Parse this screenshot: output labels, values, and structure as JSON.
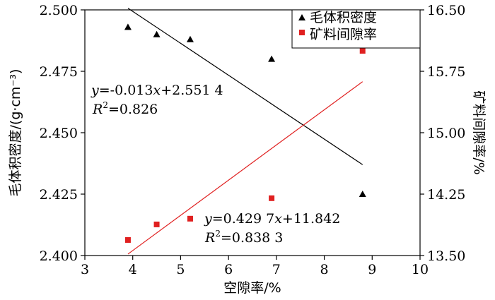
{
  "chart_data": {
    "type": "scatter",
    "xlabel": "空隙率/%",
    "ylabel_left": "毛体积密度/(g·cm⁻³)",
    "ylabel_right": "矿料间隙率/%",
    "xlim": [
      3,
      10
    ],
    "ylim_left": [
      2.4,
      2.5
    ],
    "ylim_right": [
      13.5,
      16.5
    ],
    "x_ticks": [
      "3",
      "4",
      "5",
      "6",
      "7",
      "8",
      "9",
      "10"
    ],
    "y_left_ticks": [
      "2.400",
      "2.425",
      "2.450",
      "2.475",
      "2.500"
    ],
    "y_right_ticks": [
      "13.50",
      "14.25",
      "15.00",
      "15.75",
      "16.50"
    ],
    "legend": {
      "position": "top-right"
    },
    "series": [
      {
        "name": "毛体积密度",
        "axis": "left",
        "marker": "triangle",
        "color": "#000000",
        "points": [
          [
            3.9,
            2.493
          ],
          [
            4.5,
            2.49
          ],
          [
            5.2,
            2.488
          ],
          [
            6.9,
            2.48
          ],
          [
            8.8,
            2.425
          ]
        ],
        "fit": {
          "slope": -0.013,
          "intercept": 2.5514,
          "x_range": [
            3.9,
            8.8
          ]
        },
        "equation": {
          "prefix": "y",
          "text": "=-0.013",
          "var": "x",
          "rest": "+2.551 4"
        },
        "r2": {
          "R": "R",
          "sup": "2",
          "text": "=0.826"
        }
      },
      {
        "name": "矿料间隙率",
        "axis": "right",
        "marker": "square",
        "color": "#e02020",
        "points": [
          [
            3.9,
            13.69
          ],
          [
            4.5,
            13.88
          ],
          [
            5.2,
            13.95
          ],
          [
            6.9,
            14.2
          ],
          [
            8.8,
            16.0
          ]
        ],
        "fit": {
          "slope": 0.4297,
          "intercept": 11.842,
          "x_range": [
            3.9,
            8.8
          ]
        },
        "equation": {
          "prefix": "y",
          "text": "=0.429 7",
          "var": "x",
          "rest": "+11.842"
        },
        "r2": {
          "R": "R",
          "sup": "2",
          "text": "=0.838 3"
        }
      }
    ]
  }
}
